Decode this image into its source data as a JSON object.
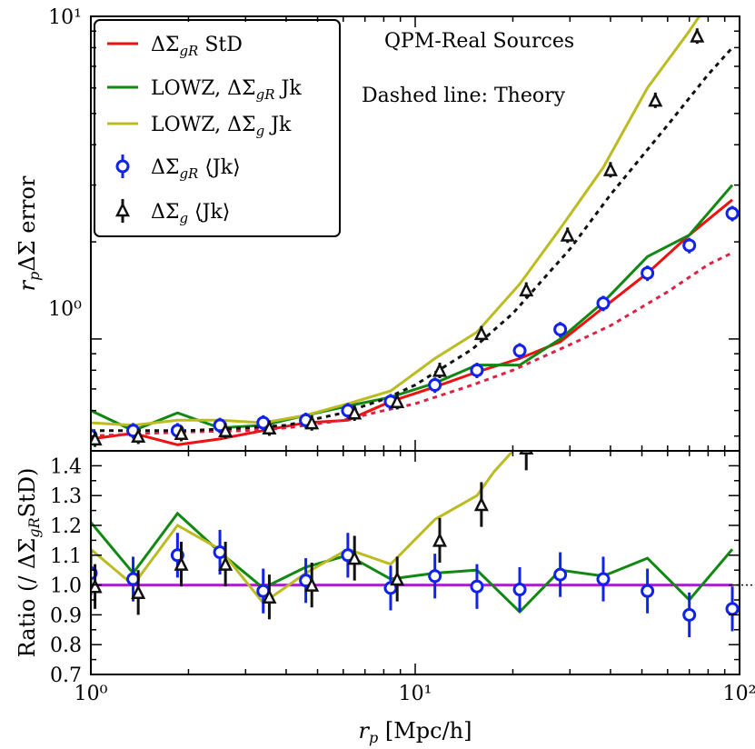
{
  "chart_data": [
    {
      "panel": "top",
      "type": "line",
      "xscale": "log",
      "yscale": "log",
      "xlim": [
        1,
        100
      ],
      "ylim": [
        0.45,
        10
      ],
      "ylabel": "r_p ΔΣ error",
      "annotations": [
        "QPM-Real Sources",
        "Dashed line: Theory"
      ],
      "y_tick_labels": [
        "10⁰",
        "10¹"
      ],
      "legend_position": "top-left",
      "series": [
        {
          "name": "ΔΣgR StD",
          "style": "solid",
          "color": "#ee1111",
          "x": [
            1.0,
            1.35,
            1.85,
            2.5,
            3.4,
            4.6,
            6.2,
            8.4,
            11.5,
            15.5,
            21,
            28,
            38,
            52,
            70,
            95
          ],
          "y": [
            0.49,
            0.51,
            0.47,
            0.49,
            0.52,
            0.55,
            0.56,
            0.64,
            0.71,
            0.79,
            0.87,
            0.98,
            1.25,
            1.6,
            2.1,
            2.7
          ]
        },
        {
          "name": "LOWZ, ΔΣgR Jk",
          "style": "solid",
          "color": "#118811",
          "x": [
            1.0,
            1.35,
            1.85,
            2.5,
            3.4,
            4.6,
            6.2,
            8.4,
            11.5,
            15.5,
            21,
            28,
            38,
            52,
            70,
            95
          ],
          "y": [
            0.6,
            0.52,
            0.59,
            0.53,
            0.54,
            0.58,
            0.62,
            0.66,
            0.73,
            0.83,
            0.83,
            1.0,
            1.3,
            1.8,
            2.1,
            3.0
          ]
        },
        {
          "name": "LOWZ, ΔΣg Jk",
          "style": "solid",
          "color": "#bbbb22",
          "x": [
            1.0,
            1.35,
            1.85,
            2.5,
            3.4,
            4.6,
            6.2,
            8.4,
            11.5,
            15.5,
            21,
            28,
            38,
            52,
            70,
            80
          ],
          "y": [
            0.55,
            0.54,
            0.56,
            0.56,
            0.55,
            0.58,
            0.63,
            0.69,
            0.87,
            1.05,
            1.48,
            2.2,
            3.4,
            6.0,
            9.0,
            11.0
          ]
        },
        {
          "name": "Theory (ΔΣgR)",
          "style": "dashed",
          "color": "#dd2244",
          "x": [
            1.0,
            1.5,
            2,
            3,
            4,
            6,
            8,
            10,
            15,
            20,
            30,
            40,
            60,
            80,
            95
          ],
          "y": [
            0.5,
            0.51,
            0.515,
            0.52,
            0.53,
            0.56,
            0.6,
            0.63,
            0.72,
            0.8,
            0.96,
            1.1,
            1.4,
            1.7,
            1.85
          ]
        },
        {
          "name": "Theory (ΔΣg)",
          "style": "dashed",
          "color": "#111111",
          "x": [
            1.0,
            1.5,
            2,
            3,
            4,
            6,
            8,
            10,
            15,
            20,
            30,
            40,
            60,
            80,
            95
          ],
          "y": [
            0.52,
            0.52,
            0.52,
            0.53,
            0.54,
            0.59,
            0.65,
            0.72,
            0.93,
            1.2,
            1.9,
            2.8,
            4.6,
            6.6,
            8.0
          ]
        },
        {
          "name": "ΔΣgR ⟨Jk⟩",
          "style": "markers",
          "marker": "circle",
          "color": "#1122ee",
          "x": [
            1.0,
            1.35,
            1.85,
            2.5,
            3.4,
            4.6,
            6.2,
            8.4,
            11.5,
            15.5,
            21,
            28,
            38,
            52,
            70,
            95
          ],
          "y": [
            0.5,
            0.52,
            0.52,
            0.54,
            0.55,
            0.56,
            0.6,
            0.64,
            0.72,
            0.8,
            0.92,
            1.07,
            1.29,
            1.6,
            1.95,
            2.45
          ],
          "yerr_rel": 0.055
        },
        {
          "name": "ΔΣg ⟨Jk⟩",
          "style": "markers",
          "marker": "triangle",
          "color": "#111111",
          "x": [
            1.03,
            1.4,
            1.9,
            2.6,
            3.55,
            4.8,
            6.5,
            8.8,
            11.9,
            16.0,
            22,
            29.5,
            40,
            55,
            74
          ],
          "y": [
            0.49,
            0.5,
            0.51,
            0.52,
            0.53,
            0.55,
            0.59,
            0.64,
            0.8,
            1.04,
            1.42,
            2.1,
            3.35,
            5.5,
            8.7
          ],
          "yerr_rel": 0.055
        }
      ],
      "legend": [
        {
          "label": "ΔΣgR StD",
          "color": "#ee1111",
          "kind": "line"
        },
        {
          "label": "LOWZ, ΔΣgR Jk",
          "color": "#118811",
          "kind": "line"
        },
        {
          "label": "LOWZ, ΔΣg Jk",
          "color": "#bbbb22",
          "kind": "line"
        },
        {
          "label": "ΔΣgR ⟨Jk⟩",
          "color": "#1122ee",
          "kind": "circle"
        },
        {
          "label": "ΔΣg ⟨Jk⟩",
          "color": "#111111",
          "kind": "triangle"
        }
      ]
    },
    {
      "panel": "bottom",
      "type": "line",
      "xscale": "log",
      "yscale": "linear",
      "xlim": [
        1,
        100
      ],
      "ylim": [
        0.7,
        1.45
      ],
      "xlabel": "r_p [Mpc/h]",
      "ylabel": "Ratio (/ ΔΣgR StD)",
      "x_tick_labels": [
        "10⁰",
        "10¹",
        "10²"
      ],
      "y_tick_labels": [
        "0.7",
        "0.8",
        "0.9",
        "1.0",
        "1.1",
        "1.2",
        "1.3",
        "1.4"
      ],
      "y_ticks": [
        0.7,
        0.8,
        0.9,
        1.0,
        1.1,
        1.2,
        1.3,
        1.4
      ],
      "series": [
        {
          "name": "unity",
          "style": "solid",
          "color": "#aa22cc",
          "x": [
            1,
            95
          ],
          "y": [
            1.0,
            1.0
          ]
        },
        {
          "name": "unity (extension)",
          "style": "dotted",
          "color": "#000000",
          "x": [
            95,
            110
          ],
          "y": [
            1.0,
            1.0
          ]
        },
        {
          "name": "LOWZ, ΔΣgR Jk",
          "style": "solid",
          "color": "#118811",
          "x": [
            1.0,
            1.35,
            1.85,
            2.5,
            3.4,
            4.6,
            6.2,
            8.4,
            11.5,
            15.5,
            21,
            28,
            38,
            52,
            70,
            95
          ],
          "y": [
            1.21,
            1.04,
            1.24,
            1.11,
            0.99,
            1.06,
            1.1,
            1.02,
            1.04,
            1.05,
            0.91,
            1.05,
            1.03,
            1.09,
            0.95,
            1.12
          ]
        },
        {
          "name": "LOWZ, ΔΣg Jk",
          "style": "solid",
          "color": "#bbbb22",
          "x": [
            1.0,
            1.35,
            1.85,
            2.5,
            3.4,
            4.6,
            6.2,
            8.4,
            11.5,
            15.5,
            17.5,
            20
          ],
          "y": [
            1.12,
            1.0,
            1.2,
            1.12,
            0.94,
            1.04,
            1.12,
            1.07,
            1.22,
            1.3,
            1.38,
            1.45
          ]
        },
        {
          "name": "ΔΣgR ⟨Jk⟩",
          "style": "markers",
          "marker": "circle",
          "color": "#1122ee",
          "x": [
            1.0,
            1.35,
            1.85,
            2.5,
            3.4,
            4.6,
            6.2,
            8.4,
            11.5,
            15.5,
            21,
            28,
            38,
            52,
            70,
            95
          ],
          "y": [
            1.04,
            1.02,
            1.1,
            1.11,
            0.98,
            1.015,
            1.1,
            0.99,
            1.03,
            0.995,
            0.985,
            1.035,
            1.02,
            0.98,
            0.9,
            0.92
          ],
          "yerr": 0.075
        },
        {
          "name": "ΔΣg ⟨Jk⟩",
          "style": "markers",
          "marker": "triangle",
          "color": "#111111",
          "x": [
            1.03,
            1.4,
            1.9,
            2.6,
            3.55,
            4.8,
            6.5,
            8.8,
            11.9,
            16.0,
            22
          ],
          "y": [
            0.995,
            0.975,
            1.07,
            1.07,
            0.96,
            1.0,
            1.09,
            1.02,
            1.15,
            1.27,
            1.46
          ],
          "yerr": 0.075
        }
      ]
    }
  ]
}
